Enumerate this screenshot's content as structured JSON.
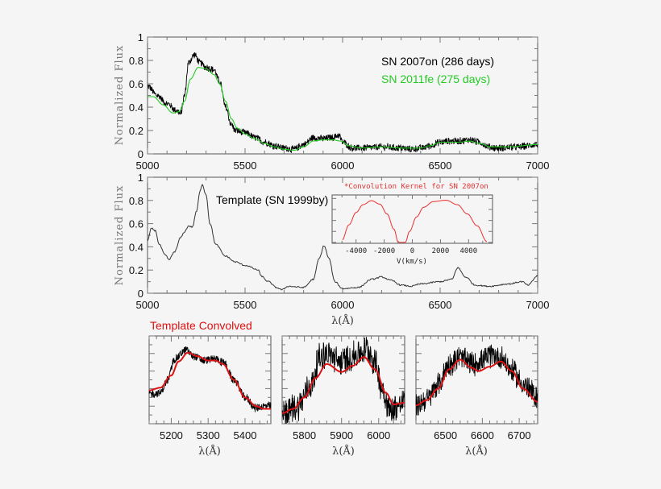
{
  "colors": {
    "observed": "#000000",
    "comparison": "#22cc22",
    "template": "#333333",
    "kernel": "#e83030",
    "convolved": "#dd1111",
    "background": "#f5f5f5"
  },
  "chart_data": [
    {
      "id": "top",
      "type": "line",
      "xlim": [
        5000,
        7000
      ],
      "ylim": [
        0,
        1
      ],
      "xticks": [
        "5000",
        "5500",
        "6000",
        "6500",
        "7000"
      ],
      "yticks": [
        "0",
        "0.2",
        "0.4",
        "0.6",
        "0.8",
        "1"
      ],
      "ylabel": "Normalized Flux",
      "xlabel": "",
      "legend": [
        "SN 2007on (286 days)",
        "SN 2011fe (275 days)"
      ],
      "series": [
        {
          "name": "SN 2007on (286 days)",
          "color": "#000000",
          "noisy": true,
          "x": [
            5000,
            5050,
            5100,
            5150,
            5170,
            5190,
            5210,
            5240,
            5270,
            5300,
            5340,
            5370,
            5400,
            5430,
            5450,
            5500,
            5550,
            5600,
            5650,
            5700,
            5750,
            5800,
            5850,
            5900,
            5950,
            5980,
            6000,
            6050,
            6100,
            6200,
            6300,
            6350,
            6400,
            6450,
            6500,
            6550,
            6600,
            6650,
            6700,
            6750,
            6800,
            6900,
            7000
          ],
          "y": [
            0.58,
            0.5,
            0.43,
            0.37,
            0.34,
            0.5,
            0.78,
            0.85,
            0.78,
            0.74,
            0.72,
            0.62,
            0.4,
            0.25,
            0.2,
            0.18,
            0.14,
            0.1,
            0.07,
            0.05,
            0.04,
            0.08,
            0.14,
            0.13,
            0.14,
            0.16,
            0.1,
            0.05,
            0.05,
            0.06,
            0.05,
            0.04,
            0.05,
            0.07,
            0.1,
            0.11,
            0.11,
            0.12,
            0.1,
            0.06,
            0.05,
            0.06,
            0.08
          ]
        },
        {
          "name": "SN 2011fe (275 days)",
          "color": "#22cc22",
          "noisy": false,
          "x": [
            5000,
            5030,
            5080,
            5130,
            5160,
            5190,
            5220,
            5260,
            5300,
            5340,
            5370,
            5400,
            5430,
            5460,
            5500,
            5550,
            5600,
            5650,
            5700,
            5750,
            5800,
            5850,
            5900,
            5950,
            5990,
            6030,
            6100,
            6200,
            6300,
            6400,
            6450,
            6500,
            6600,
            6650,
            6700,
            6760,
            6850,
            7000
          ],
          "y": [
            0.49,
            0.49,
            0.42,
            0.35,
            0.36,
            0.45,
            0.64,
            0.74,
            0.73,
            0.68,
            0.6,
            0.45,
            0.3,
            0.22,
            0.17,
            0.13,
            0.09,
            0.06,
            0.04,
            0.03,
            0.06,
            0.11,
            0.12,
            0.12,
            0.11,
            0.07,
            0.05,
            0.06,
            0.05,
            0.05,
            0.07,
            0.1,
            0.1,
            0.11,
            0.09,
            0.06,
            0.06,
            0.08
          ]
        }
      ]
    },
    {
      "id": "middle",
      "type": "line",
      "xlim": [
        5000,
        7000
      ],
      "ylim": [
        0,
        1
      ],
      "xticks": [
        "5000",
        "5500",
        "6000",
        "6500",
        "7000"
      ],
      "yticks": [
        "0",
        "0.2",
        "0.4",
        "0.6",
        "0.8",
        "1"
      ],
      "ylabel": "Normalized Flux",
      "xlabel": "λ(Å)",
      "annotation": "Template (SN 1999by)",
      "series": [
        {
          "name": "Template (SN 1999by)",
          "color": "#333333",
          "noisy": false,
          "x": [
            5000,
            5020,
            5040,
            5060,
            5090,
            5110,
            5140,
            5170,
            5190,
            5210,
            5230,
            5250,
            5270,
            5280,
            5300,
            5320,
            5350,
            5400,
            5450,
            5500,
            5570,
            5580,
            5620,
            5660,
            5690,
            5720,
            5800,
            5850,
            5880,
            5905,
            5930,
            5960,
            6000,
            6080,
            6150,
            6200,
            6250,
            6300,
            6350,
            6400,
            6500,
            6560,
            6590,
            6630,
            6680,
            6750,
            6850,
            6920,
            6950,
            7000
          ],
          "y": [
            0.45,
            0.56,
            0.54,
            0.42,
            0.33,
            0.29,
            0.36,
            0.48,
            0.53,
            0.58,
            0.57,
            0.7,
            0.88,
            0.94,
            0.85,
            0.6,
            0.42,
            0.32,
            0.27,
            0.24,
            0.2,
            0.15,
            0.1,
            0.05,
            0.03,
            0.06,
            0.05,
            0.12,
            0.3,
            0.41,
            0.3,
            0.1,
            0.04,
            0.05,
            0.12,
            0.14,
            0.11,
            0.07,
            0.06,
            0.08,
            0.1,
            0.12,
            0.22,
            0.14,
            0.07,
            0.06,
            0.08,
            0.1,
            0.07,
            0.15
          ]
        }
      ]
    },
    {
      "id": "inset",
      "type": "line",
      "title": "*Convolution Kernel for SN 2007on",
      "xlim": [
        -5700,
        5700
      ],
      "ylim": [
        0,
        1
      ],
      "xticks": [
        "-4000",
        "-2000",
        "0",
        "2000",
        "4000"
      ],
      "xlabel": "V(km/s)",
      "series": [
        {
          "name": "",
          "color": "#e83030",
          "noisy": false,
          "x": [
            -5000,
            -4500,
            -4000,
            -3500,
            -2900,
            -2300,
            -1800,
            -1300,
            -1000,
            -500,
            -200,
            300,
            800,
            1500,
            2400,
            3200,
            3900,
            4600,
            5300
          ],
          "y": [
            0.05,
            0.4,
            0.68,
            0.86,
            0.95,
            0.87,
            0.65,
            0.3,
            0.0,
            0.0,
            0.25,
            0.58,
            0.8,
            0.93,
            0.96,
            0.86,
            0.65,
            0.38,
            0.02
          ]
        }
      ]
    },
    {
      "id": "zoom1",
      "type": "line",
      "title": "Template Convolved",
      "xlim": [
        5140,
        5470
      ],
      "ylim": [
        0,
        1
      ],
      "xticks": [
        "5200",
        "5300",
        "5400"
      ],
      "xlabel": "λ(Å)",
      "series": [
        {
          "name": "",
          "color": "#000000",
          "noisy": true,
          "x": [
            5140,
            5170,
            5190,
            5210,
            5240,
            5260,
            5290,
            5320,
            5340,
            5370,
            5400,
            5430,
            5450,
            5470
          ],
          "y": [
            0.34,
            0.35,
            0.5,
            0.74,
            0.84,
            0.77,
            0.72,
            0.74,
            0.7,
            0.5,
            0.3,
            0.18,
            0.2,
            0.2
          ]
        },
        {
          "name": "Template Convolved",
          "color": "#dd1111",
          "noisy": false,
          "x": [
            5140,
            5170,
            5200,
            5220,
            5245,
            5270,
            5300,
            5320,
            5340,
            5370,
            5400,
            5430,
            5450,
            5470
          ],
          "y": [
            0.38,
            0.41,
            0.55,
            0.71,
            0.81,
            0.77,
            0.72,
            0.72,
            0.68,
            0.5,
            0.3,
            0.2,
            0.17,
            0.17
          ]
        }
      ]
    },
    {
      "id": "zoom2",
      "type": "line",
      "xlim": [
        5740,
        6070
      ],
      "ylim": [
        0,
        1
      ],
      "xticks": [
        "5800",
        "5900",
        "6000"
      ],
      "xlabel": "λ(Å)",
      "series": [
        {
          "name": "",
          "color": "#000000",
          "noisy": true,
          "x": [
            5740,
            5780,
            5820,
            5840,
            5860,
            5900,
            5940,
            5970,
            5990,
            6010,
            6030,
            6050,
            6070
          ],
          "y": [
            0.1,
            0.2,
            0.45,
            0.75,
            0.8,
            0.7,
            0.78,
            0.85,
            0.7,
            0.4,
            0.15,
            0.2,
            0.25
          ]
        },
        {
          "name": "Template Convolved",
          "color": "#dd1111",
          "noisy": false,
          "x": [
            5740,
            5770,
            5800,
            5830,
            5860,
            5900,
            5930,
            5960,
            5990,
            6020,
            6040,
            6070
          ],
          "y": [
            0.12,
            0.17,
            0.3,
            0.52,
            0.68,
            0.59,
            0.66,
            0.76,
            0.62,
            0.35,
            0.22,
            0.24
          ]
        }
      ]
    },
    {
      "id": "zoom3",
      "type": "line",
      "xlim": [
        6420,
        6750
      ],
      "ylim": [
        0,
        1
      ],
      "xticks": [
        "6500",
        "6600",
        "6700"
      ],
      "xlabel": "λ(Å)",
      "series": [
        {
          "name": "",
          "color": "#000000",
          "noisy": true,
          "x": [
            6420,
            6450,
            6480,
            6510,
            6540,
            6570,
            6600,
            6630,
            6650,
            6680,
            6710,
            6750
          ],
          "y": [
            0.2,
            0.28,
            0.45,
            0.68,
            0.75,
            0.68,
            0.72,
            0.78,
            0.75,
            0.6,
            0.45,
            0.3
          ]
        },
        {
          "name": "Template Convolved",
          "color": "#dd1111",
          "noisy": false,
          "x": [
            6420,
            6450,
            6480,
            6510,
            6540,
            6570,
            6590,
            6620,
            6650,
            6680,
            6710,
            6750
          ],
          "y": [
            0.21,
            0.27,
            0.4,
            0.62,
            0.73,
            0.64,
            0.6,
            0.65,
            0.71,
            0.6,
            0.4,
            0.25
          ]
        }
      ]
    }
  ]
}
